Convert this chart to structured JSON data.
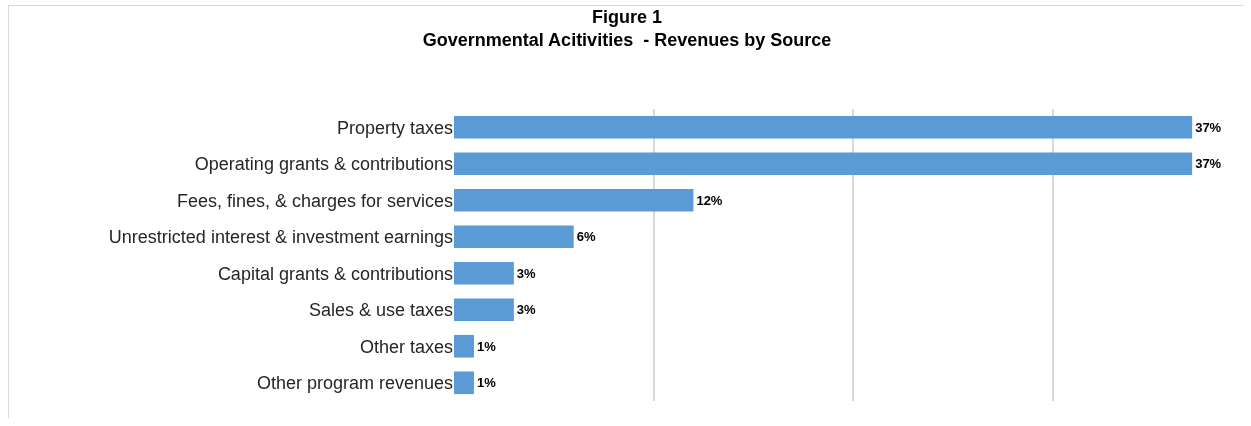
{
  "chart_data": {
    "type": "bar",
    "orientation": "horizontal",
    "title": "Figure 1",
    "subtitle": "Governmental Acitivities  - Revenues by Source",
    "categories": [
      "Property taxes",
      "Operating grants & contributions",
      "Fees, fines, & charges for services",
      "Unrestricted interest & investment earnings",
      "Capital grants & contributions",
      "Sales & use taxes",
      "Other taxes",
      "Other program revenues"
    ],
    "values": [
      37,
      37,
      12,
      6,
      3,
      3,
      1,
      1
    ],
    "value_labels": [
      "37%",
      "37%",
      "12%",
      "6%",
      "3%",
      "3%",
      "1%",
      "1%"
    ],
    "color": "#5b9bd5",
    "xticks": [
      {
        "value": 10,
        "label": null
      },
      {
        "value": 20,
        "label": null
      },
      {
        "value": 30,
        "label": null
      }
    ],
    "tick_labels": "y",
    "grid": "x"
  }
}
